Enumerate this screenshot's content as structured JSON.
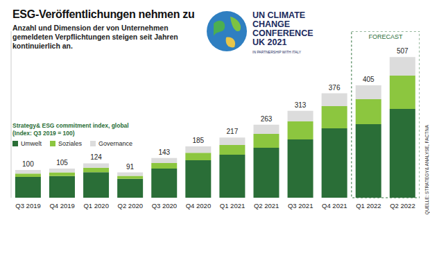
{
  "chart_data": {
    "type": "bar",
    "stacked": true,
    "title": "ESG-Veröffentlichungen nehmen zu",
    "subtitle": "Anzahl und Dimension der von Unternehmen gemeldeten Verpflichtungen steigen seit Jahren kontinuierlich an.",
    "y_label": [
      "Strategy& ESG commitment index, global",
      "(Index: Q3 2019 = 100)"
    ],
    "categories": [
      "Q3 2019",
      "Q4 2019",
      "Q1 2020",
      "Q2 2020",
      "Q3 2020",
      "Q4 2020",
      "Q1 2021",
      "Q2 2021",
      "Q3 2021",
      "Q4 2021",
      "Q1 2022",
      "Q2 2022"
    ],
    "series": [
      {
        "name": "Umwelt",
        "color": "#2a6e37",
        "values": [
          75,
          78,
          92,
          68,
          105,
          135,
          155,
          180,
          210,
          250,
          265,
          320
        ]
      },
      {
        "name": "Soziales",
        "color": "#8cc63f",
        "values": [
          12,
          13,
          16,
          11,
          20,
          27,
          35,
          50,
          65,
          80,
          90,
          120
        ]
      },
      {
        "name": "Governance",
        "color": "#dcdcdc",
        "values": [
          13,
          14,
          16,
          12,
          18,
          23,
          27,
          33,
          38,
          46,
          50,
          67
        ]
      }
    ],
    "totals": [
      100,
      105,
      124,
      91,
      143,
      185,
      217,
      263,
      313,
      376,
      405,
      507
    ],
    "ylim": [
      0,
      600
    ],
    "tick_labels": "x",
    "legend": "top left",
    "forecast": {
      "label": "FORECAST",
      "from": "Q1 2022",
      "to": "Q2 2022"
    },
    "logo": {
      "lines": [
        "UN CLIMATE",
        "CHANGE",
        "CONFERENCE",
        "UK 2021"
      ],
      "note": "IN PARTNERSHIP WITH ITALY"
    },
    "source": "QUELLE: STRATEGY& ANALYSE, FACTIVA"
  }
}
